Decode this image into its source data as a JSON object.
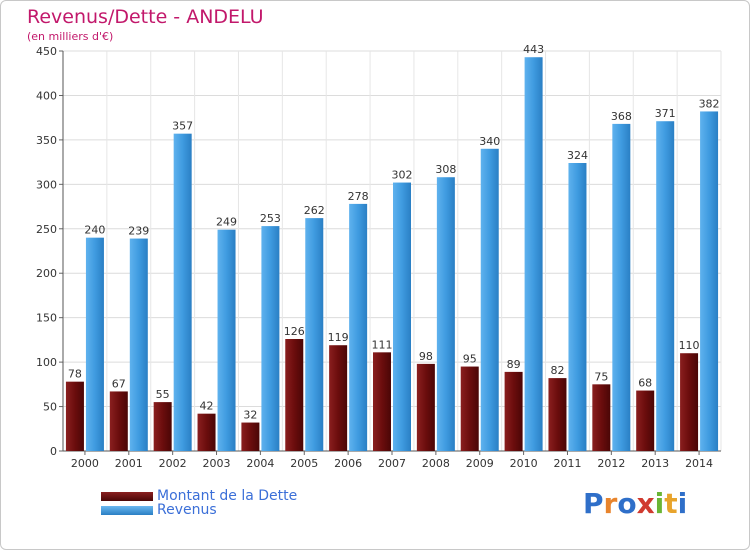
{
  "title": "Revenus/Dette - ANDELU",
  "subtitle": "(en milliers d'€)",
  "logo": {
    "letters": [
      "P",
      "r",
      "o",
      "x",
      "i",
      "t",
      "i"
    ],
    "colors": [
      "#2f6fc9",
      "#e8842c",
      "#2f6fc9",
      "#d03a2f",
      "#6ab535",
      "#e8a42c",
      "#2f6fc9"
    ]
  },
  "colors": {
    "dette": "#6b0d0d",
    "dette_light": "#9b2c2c",
    "revenus": "#3f9be0",
    "revenus_light": "#6ab8f0",
    "axis_text": "#333333",
    "grid": "#d9d9d9"
  },
  "legend": [
    {
      "label": "Montant de la Dette",
      "color": "#6b0d0d"
    },
    {
      "label": "Revenus",
      "color": "#3f9be0"
    }
  ],
  "chart_data": {
    "type": "bar",
    "title": "Revenus/Dette - ANDELU",
    "subtitle": "(en milliers d'€)",
    "categories": [
      "2000",
      "2001",
      "2002",
      "2003",
      "2004",
      "2005",
      "2006",
      "2007",
      "2008",
      "2009",
      "2010",
      "2011",
      "2012",
      "2013",
      "2014"
    ],
    "series": [
      {
        "name": "Montant de la Dette",
        "values": [
          78,
          67,
          55,
          42,
          32,
          126,
          119,
          111,
          98,
          95,
          89,
          82,
          75,
          68,
          110
        ]
      },
      {
        "name": "Revenus",
        "values": [
          240,
          239,
          357,
          249,
          253,
          262,
          278,
          302,
          308,
          340,
          443,
          324,
          368,
          371,
          382
        ]
      }
    ],
    "ylim": [
      0,
      450
    ],
    "yticks": [
      0,
      50,
      100,
      150,
      200,
      250,
      300,
      350,
      400,
      450
    ],
    "grid": true,
    "legend_position": "bottom-left"
  }
}
